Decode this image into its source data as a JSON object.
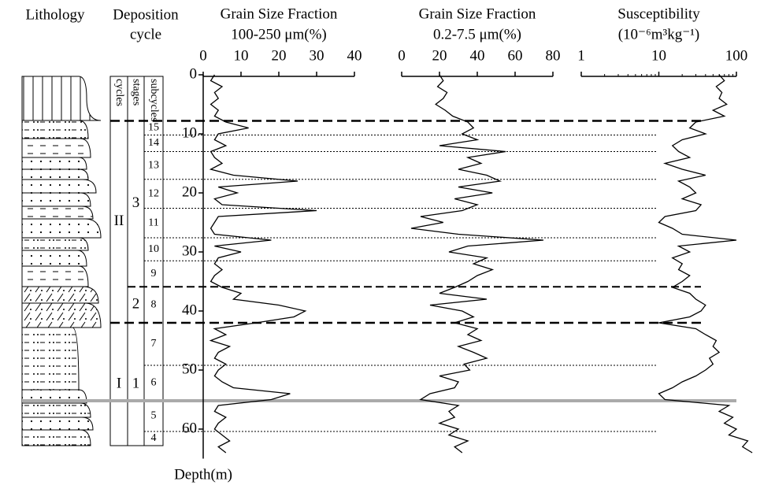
{
  "headers": {
    "lithology": "Lithology",
    "deposition": [
      "Deposition",
      "cycle"
    ]
  },
  "columns": [
    "cycles",
    "stages",
    "subcycles"
  ],
  "cycles": [
    "II",
    "I"
  ],
  "stages": [
    "3",
    "2",
    "1"
  ],
  "subcycles": [
    "15",
    "14",
    "13",
    "12",
    "11",
    "10",
    "9",
    "8",
    "7",
    "6",
    "5",
    "4"
  ],
  "boundaries": [
    {
      "depth": 7.8,
      "level": "cycle"
    },
    {
      "depth": 10.2,
      "level": "sub"
    },
    {
      "depth": 13,
      "level": "sub"
    },
    {
      "depth": 17.7,
      "level": "sub"
    },
    {
      "depth": 22.6,
      "level": "sub"
    },
    {
      "depth": 27.6,
      "level": "sub"
    },
    {
      "depth": 31.5,
      "level": "sub"
    },
    {
      "depth": 35.9,
      "level": "stage"
    },
    {
      "depth": 42,
      "level": "cycle"
    },
    {
      "depth": 49.2,
      "level": "sub"
    },
    {
      "depth": 55.2,
      "level": "sub"
    },
    {
      "depth": 60.4,
      "level": "sub"
    }
  ],
  "marker": {
    "depth": 55.2,
    "color": "#aaaaaa"
  },
  "depth_axis": {
    "label": "Depth(m)",
    "ylim": [
      0,
      65
    ],
    "yticks": [
      0,
      10,
      20,
      30,
      40,
      50,
      60
    ],
    "values": [
      0,
      1,
      2,
      3,
      4,
      5,
      6,
      7,
      8,
      9,
      10,
      11,
      12,
      13,
      14,
      15,
      16,
      17,
      18,
      19,
      20,
      21,
      22,
      23,
      24,
      25,
      26,
      27,
      28,
      29,
      30,
      31,
      32,
      33,
      34,
      35,
      36,
      37,
      38,
      39,
      40,
      41,
      42,
      43,
      44,
      45,
      46,
      47,
      48,
      49,
      50,
      51,
      52,
      53,
      54,
      55,
      56,
      57,
      58,
      59,
      60,
      61,
      62,
      63,
      64
    ]
  },
  "chart_data": [
    {
      "type": "line",
      "title": "Grain Size Fraction",
      "subtitle": "100-250 μm(%)",
      "color": "#000000",
      "xlim": [
        0,
        40
      ],
      "xticks": [
        0,
        10,
        20,
        30,
        40
      ],
      "values": [
        3,
        2,
        5,
        3,
        4,
        2,
        4,
        3,
        6,
        12,
        4,
        3,
        6,
        2,
        3,
        5,
        2,
        8,
        25,
        4,
        9,
        3,
        5,
        30,
        4,
        3,
        2,
        3,
        18,
        3,
        10,
        4,
        3,
        5,
        3,
        2,
        5,
        10,
        8,
        20,
        27,
        24,
        14,
        3,
        6,
        2,
        7,
        4,
        3,
        6,
        4,
        3,
        5,
        8,
        23,
        18,
        4,
        3,
        6,
        4,
        3,
        5,
        7,
        4,
        6
      ]
    },
    {
      "type": "line",
      "title": "Grain Size Fraction",
      "subtitle": "0.2-7.5 μm(%)",
      "color": "#000000",
      "xlim": [
        0,
        80
      ],
      "xticks": [
        0,
        20,
        40,
        60,
        80
      ],
      "values": [
        20,
        22,
        19,
        24,
        22,
        18,
        23,
        27,
        35,
        38,
        32,
        40,
        20,
        55,
        35,
        42,
        30,
        45,
        52,
        30,
        48,
        28,
        40,
        32,
        10,
        22,
        5,
        30,
        75,
        35,
        25,
        45,
        38,
        48,
        40,
        35,
        28,
        20,
        45,
        15,
        32,
        38,
        28,
        40,
        35,
        42,
        30,
        38,
        45,
        33,
        36,
        20,
        30,
        28,
        15,
        10,
        30,
        25,
        28,
        20,
        30,
        25,
        35,
        28,
        32
      ]
    },
    {
      "type": "line",
      "title": "Susceptibility",
      "subtitle": "(10⁻⁶m³kg⁻¹)",
      "color": "#000000",
      "xscale": "log",
      "xlim": [
        1,
        100
      ],
      "xticks": [
        1,
        10,
        100
      ],
      "xminor": [
        2,
        3,
        4,
        5,
        6,
        7,
        8,
        9,
        20,
        30,
        40,
        50,
        60,
        70,
        80,
        90
      ],
      "values": [
        60,
        70,
        55,
        65,
        60,
        75,
        50,
        70,
        30,
        25,
        40,
        20,
        15,
        18,
        25,
        12,
        20,
        40,
        18,
        25,
        30,
        20,
        35,
        30,
        12,
        10,
        15,
        20,
        100,
        18,
        25,
        15,
        20,
        18,
        25,
        20,
        15,
        25,
        30,
        40,
        35,
        25,
        10,
        30,
        40,
        55,
        50,
        60,
        45,
        50,
        40,
        30,
        20,
        15,
        10,
        12,
        80,
        60,
        90,
        70,
        100,
        80,
        140,
        120,
        160
      ]
    }
  ]
}
